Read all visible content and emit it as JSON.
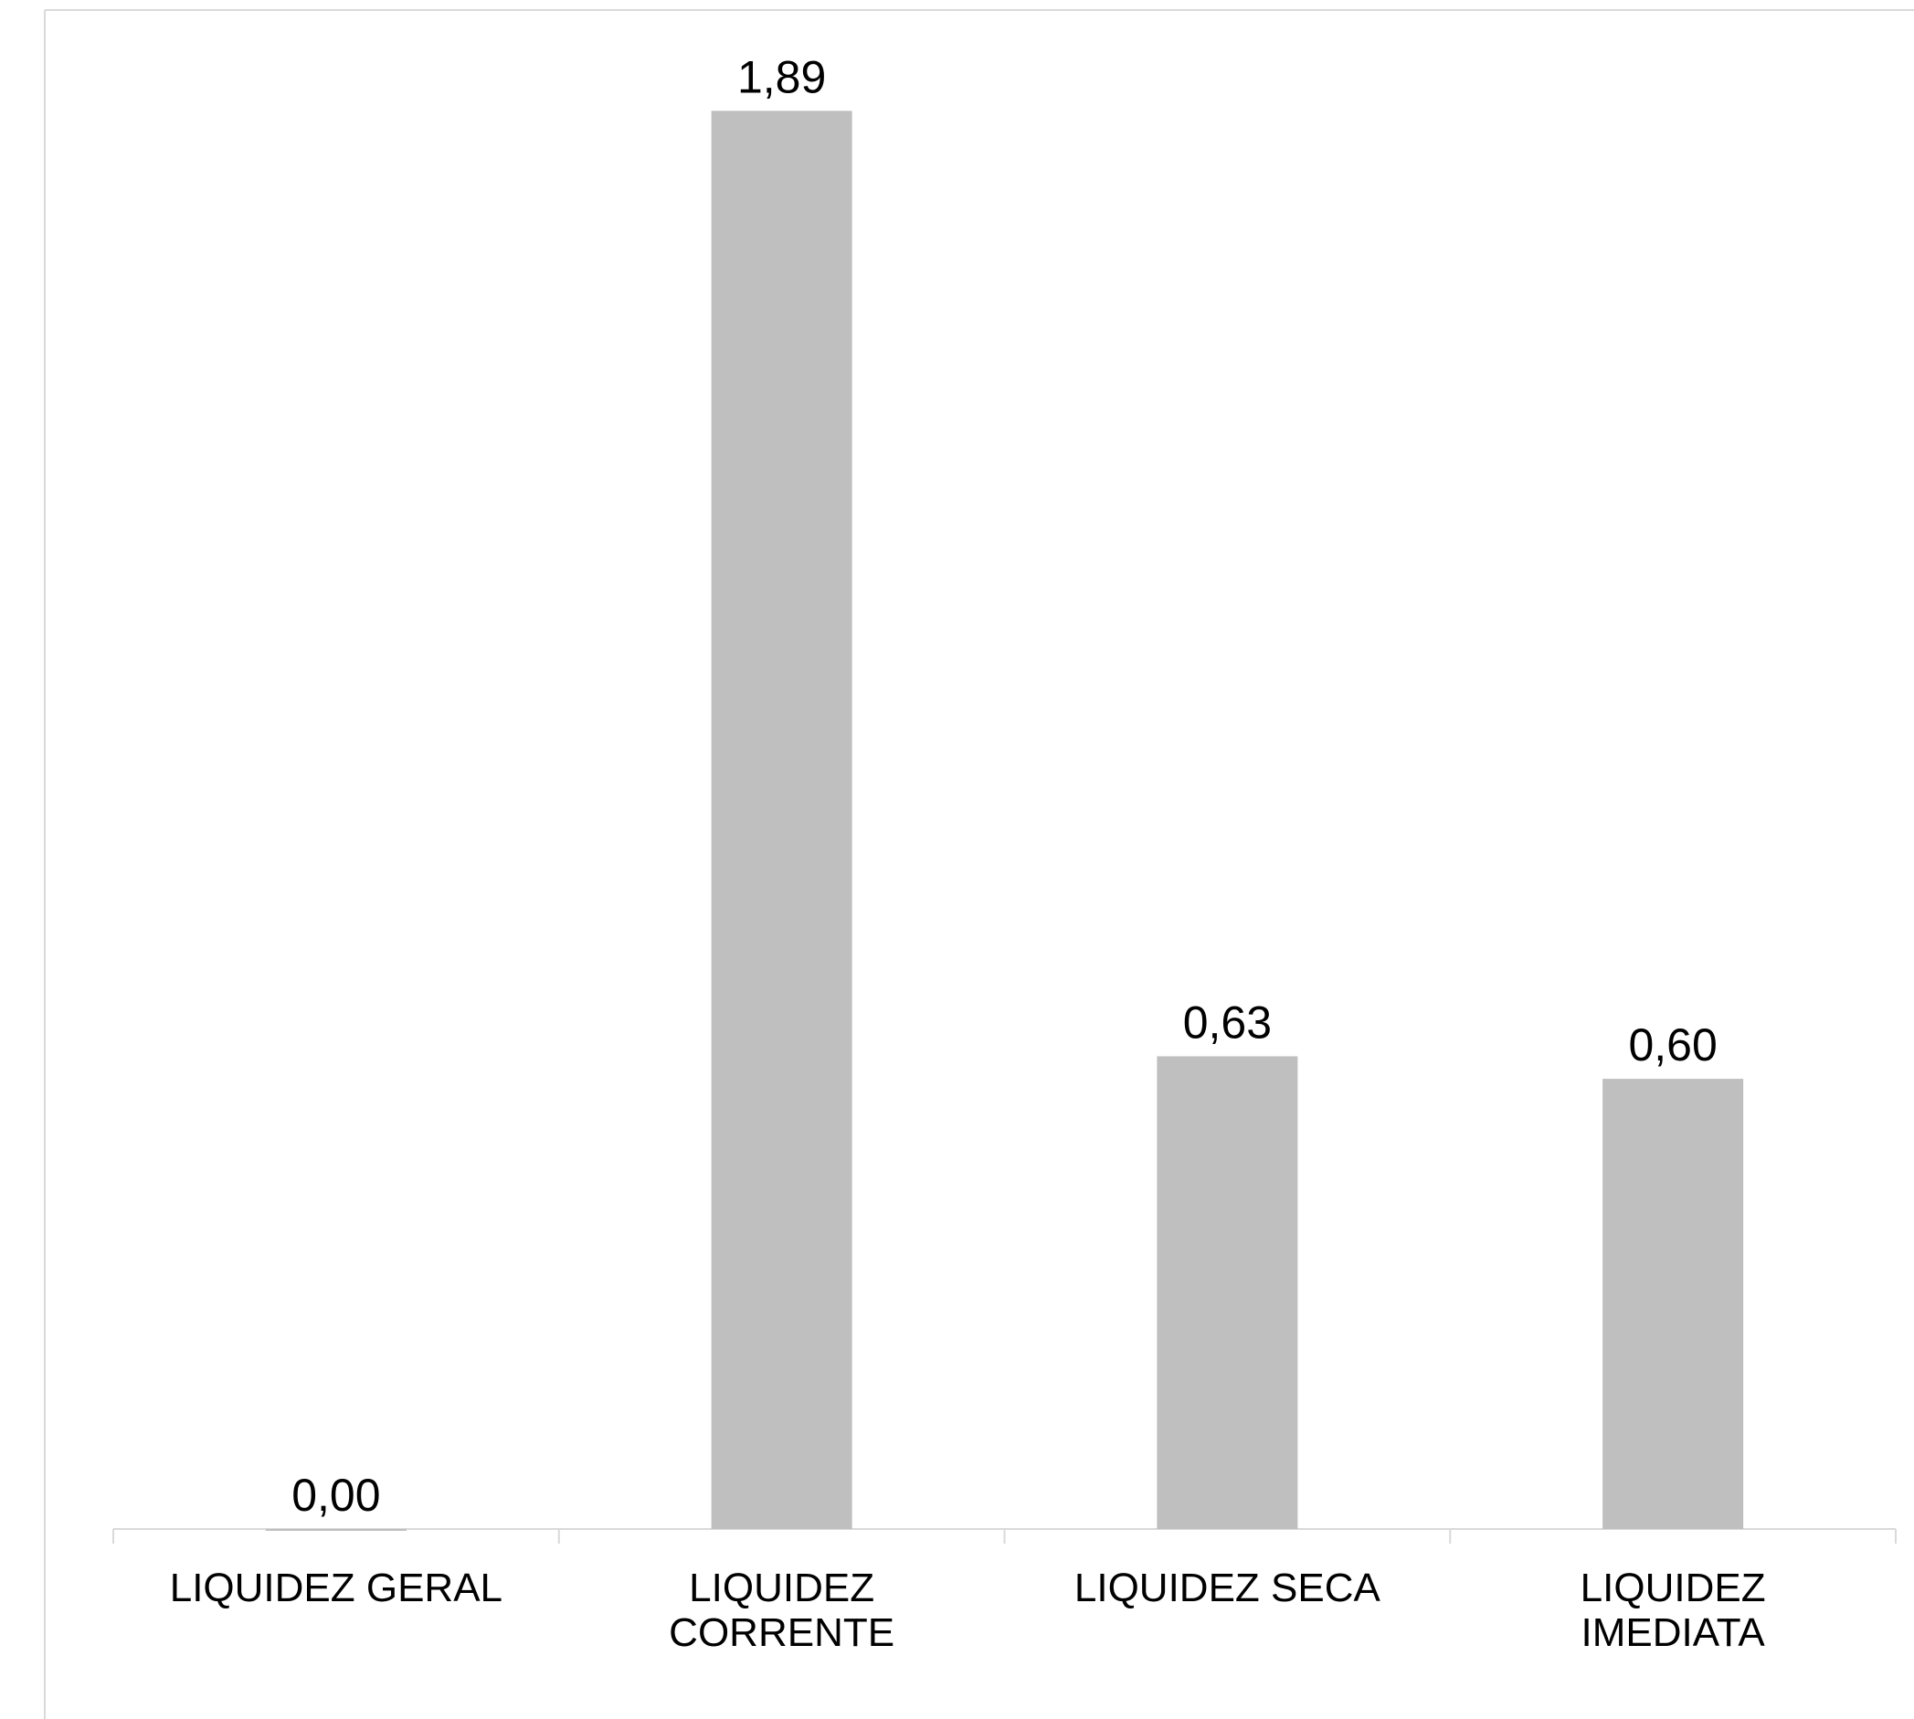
{
  "chart_data": {
    "type": "bar",
    "categories": [
      "LIQUIDEZ GERAL",
      "LIQUIDEZ CORRENTE",
      "LIQUIDEZ SECA",
      "LIQUIDEZ IMEDIATA"
    ],
    "values": [
      0,
      1.89,
      0.63,
      0.6
    ],
    "value_labels": [
      "0,00",
      "1,89",
      "0,63",
      "0,60"
    ],
    "color": "#bfbfbf",
    "ylim": [
      0,
      2
    ]
  }
}
